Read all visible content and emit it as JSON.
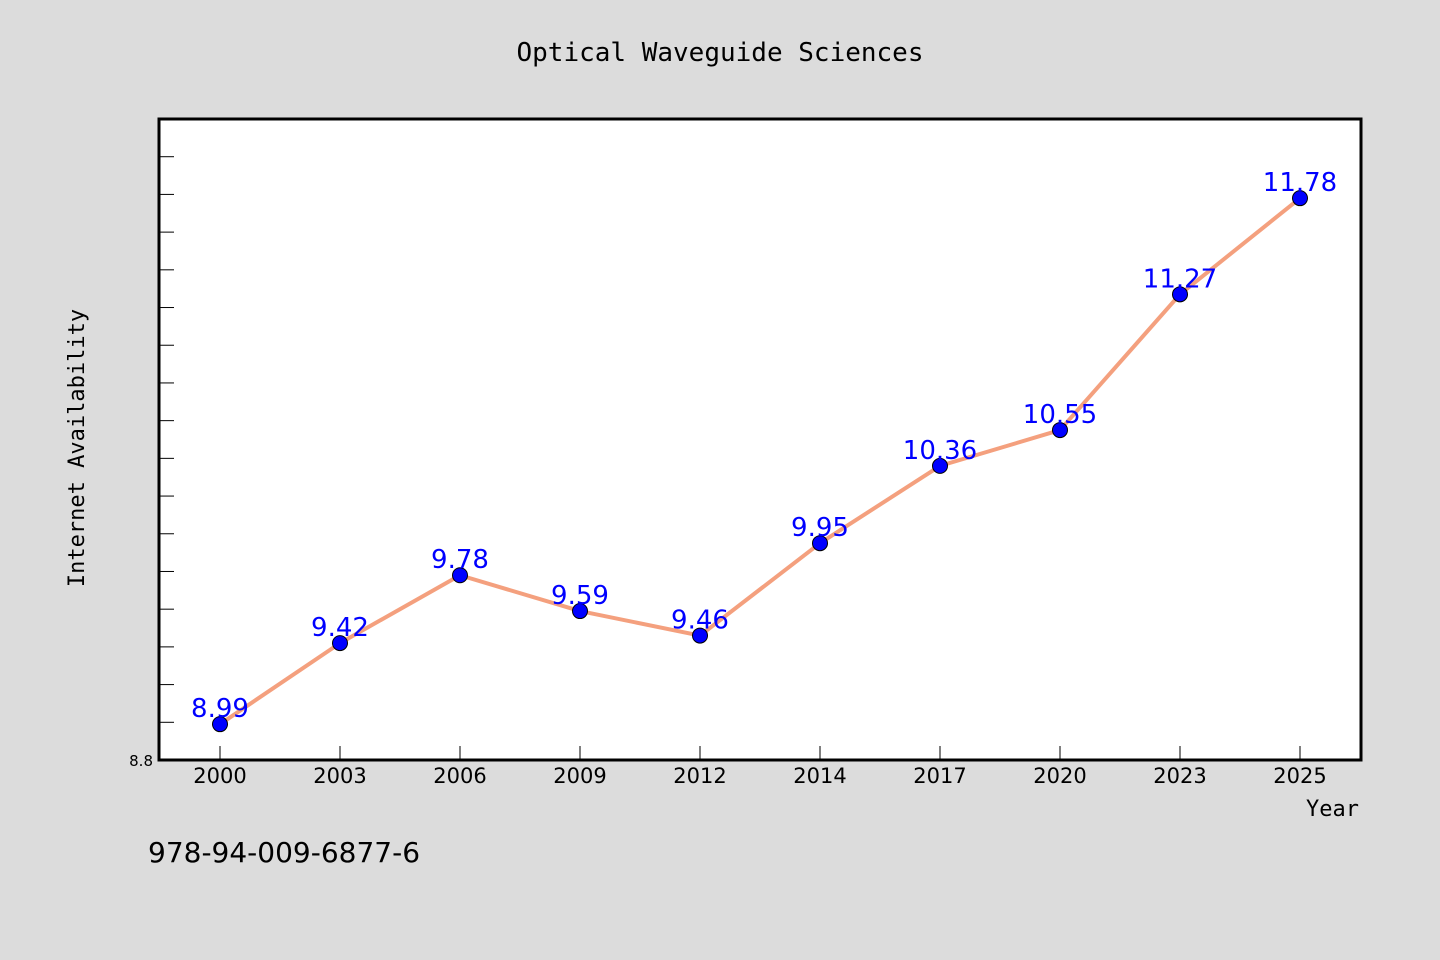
{
  "chart_data": {
    "type": "line",
    "title": "Optical Waveguide Sciences",
    "xlabel": "Year",
    "ylabel": "Internet Availability",
    "categories": [
      "2000",
      "2003",
      "2006",
      "2009",
      "2012",
      "2014",
      "2017",
      "2020",
      "2023",
      "2025"
    ],
    "series": [
      {
        "values": [
          8.99,
          9.42,
          9.78,
          9.59,
          9.46,
          9.95,
          10.36,
          10.55,
          11.27,
          11.78
        ]
      }
    ],
    "data_labels": [
      "8.99",
      "9.42",
      "9.78",
      "9.59",
      "9.46",
      "9.95",
      "10.36",
      "10.55",
      "11.27",
      "11.78"
    ],
    "ylim": [
      8.8,
      12.2
    ],
    "y_tick_labels": [
      "8.8"
    ],
    "grid": false,
    "line_color": "#f4a07e",
    "marker_color": "#0000ff",
    "label_color": "#0000ff"
  },
  "footer": {
    "isbn": "978-94-009-6877-6"
  }
}
